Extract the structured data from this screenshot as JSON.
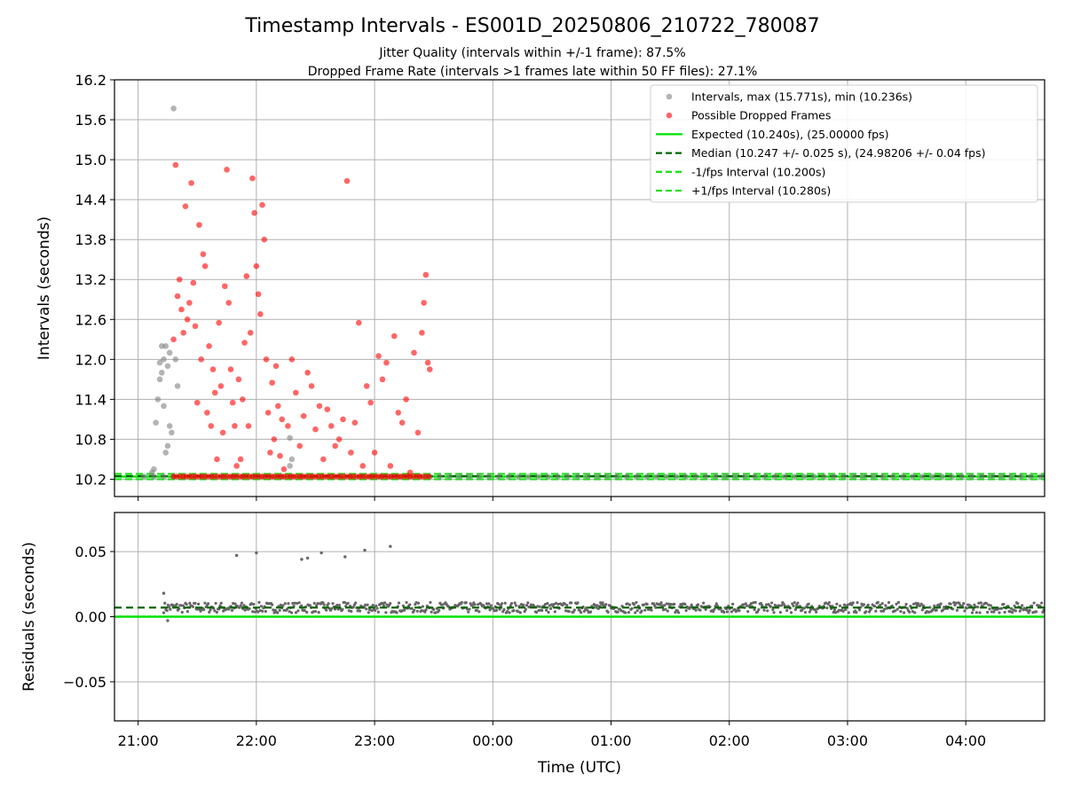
{
  "figure": {
    "title": "Timestamp Intervals - ES001D_20250806_210722_780087",
    "subtitle_1": "Jitter Quality (intervals within +/-1 frame): 87.5%",
    "subtitle_2": "Dropped Frame Rate (intervals >1 frames late within 50 FF files): 27.1%"
  },
  "colors": {
    "intervals": "#808080",
    "dropped": "#ff0000",
    "expected": "#00e000",
    "median": "#006400",
    "fps_band": "#20e020",
    "grid": "#b0b0b0",
    "residuals": "#666666"
  },
  "chart_data": [
    {
      "type": "scatter",
      "name": "intervals",
      "xlabel": "",
      "ylabel": "Intervals (seconds)",
      "xlim": [
        "20:48",
        "04:40"
      ],
      "ylim": [
        9.94,
        16.2
      ],
      "yticks": [
        "10.2",
        "10.8",
        "11.4",
        "12.0",
        "12.6",
        "13.2",
        "13.8",
        "14.4",
        "15.0",
        "15.6",
        "16.2"
      ],
      "grid": true,
      "legend_position": "top-right",
      "series": [
        {
          "name": "Intervals, max (15.771s), min (10.236s)",
          "style": "points",
          "points": [
            [
              "21:07",
              10.3
            ],
            [
              "21:08",
              10.35
            ],
            [
              "21:09",
              11.05
            ],
            [
              "21:10",
              11.4
            ],
            [
              "21:11",
              11.7
            ],
            [
              "21:11",
              11.95
            ],
            [
              "21:12",
              12.2
            ],
            [
              "21:12",
              11.8
            ],
            [
              "21:13",
              12.0
            ],
            [
              "21:13",
              11.3
            ],
            [
              "21:14",
              12.2
            ],
            [
              "21:14",
              10.6
            ],
            [
              "21:15",
              10.7
            ],
            [
              "21:15",
              11.9
            ],
            [
              "21:16",
              11.0
            ],
            [
              "21:16",
              12.1
            ],
            [
              "21:17",
              10.9
            ],
            [
              "21:18",
              15.77
            ],
            [
              "21:19",
              12.0
            ],
            [
              "21:20",
              11.6
            ],
            [
              "22:17",
              10.82
            ],
            [
              "22:17",
              10.4
            ],
            [
              "22:18",
              10.5
            ]
          ]
        },
        {
          "name": "Possible Dropped Frames",
          "style": "points",
          "points": [
            [
              "21:18",
              12.3
            ],
            [
              "21:19",
              14.92
            ],
            [
              "21:20",
              12.95
            ],
            [
              "21:21",
              13.2
            ],
            [
              "21:22",
              12.75
            ],
            [
              "21:23",
              12.4
            ],
            [
              "21:24",
              14.3
            ],
            [
              "21:25",
              12.6
            ],
            [
              "21:26",
              12.85
            ],
            [
              "21:27",
              14.65
            ],
            [
              "21:28",
              13.15
            ],
            [
              "21:29",
              12.5
            ],
            [
              "21:30",
              11.35
            ],
            [
              "21:31",
              14.02
            ],
            [
              "21:32",
              12.0
            ],
            [
              "21:33",
              13.58
            ],
            [
              "21:34",
              13.4
            ],
            [
              "21:35",
              11.2
            ],
            [
              "21:36",
              12.2
            ],
            [
              "21:37",
              11.0
            ],
            [
              "21:38",
              11.85
            ],
            [
              "21:39",
              11.5
            ],
            [
              "21:40",
              10.5
            ],
            [
              "21:41",
              12.55
            ],
            [
              "21:42",
              11.6
            ],
            [
              "21:43",
              10.9
            ],
            [
              "21:44",
              13.1
            ],
            [
              "21:45",
              14.85
            ],
            [
              "21:46",
              12.85
            ],
            [
              "21:47",
              11.85
            ],
            [
              "21:48",
              11.35
            ],
            [
              "21:49",
              11.0
            ],
            [
              "21:50",
              10.4
            ],
            [
              "21:51",
              11.7
            ],
            [
              "21:52",
              10.5
            ],
            [
              "21:53",
              11.4
            ],
            [
              "21:54",
              12.25
            ],
            [
              "21:55",
              13.25
            ],
            [
              "21:56",
              11.0
            ],
            [
              "21:57",
              12.4
            ],
            [
              "21:58",
              14.72
            ],
            [
              "21:59",
              14.2
            ],
            [
              "22:00",
              13.4
            ],
            [
              "22:01",
              12.98
            ],
            [
              "22:02",
              12.68
            ],
            [
              "22:03",
              14.32
            ],
            [
              "22:04",
              13.8
            ],
            [
              "22:05",
              12.0
            ],
            [
              "22:06",
              11.2
            ],
            [
              "22:07",
              10.6
            ],
            [
              "22:08",
              11.65
            ],
            [
              "22:09",
              10.8
            ],
            [
              "22:10",
              11.9
            ],
            [
              "22:11",
              11.3
            ],
            [
              "22:12",
              10.55
            ],
            [
              "22:13",
              11.1
            ],
            [
              "22:14",
              10.35
            ],
            [
              "22:16",
              11.0
            ],
            [
              "22:18",
              12.0
            ],
            [
              "22:20",
              11.5
            ],
            [
              "22:22",
              10.7
            ],
            [
              "22:24",
              11.15
            ],
            [
              "22:26",
              11.8
            ],
            [
              "22:28",
              11.6
            ],
            [
              "22:30",
              10.95
            ],
            [
              "22:32",
              11.3
            ],
            [
              "22:34",
              10.5
            ],
            [
              "22:36",
              11.25
            ],
            [
              "22:38",
              11.0
            ],
            [
              "22:40",
              10.7
            ],
            [
              "22:42",
              10.8
            ],
            [
              "22:44",
              11.1
            ],
            [
              "22:46",
              14.68
            ],
            [
              "22:48",
              10.6
            ],
            [
              "22:50",
              11.05
            ],
            [
              "22:52",
              12.55
            ],
            [
              "22:54",
              10.4
            ],
            [
              "22:56",
              11.6
            ],
            [
              "22:58",
              11.35
            ],
            [
              "23:00",
              10.6
            ],
            [
              "23:02",
              12.05
            ],
            [
              "23:04",
              11.7
            ],
            [
              "23:06",
              11.95
            ],
            [
              "23:08",
              10.4
            ],
            [
              "23:10",
              12.35
            ],
            [
              "23:12",
              11.2
            ],
            [
              "23:14",
              11.05
            ],
            [
              "23:16",
              11.4
            ],
            [
              "23:18",
              10.3
            ],
            [
              "23:20",
              12.1
            ],
            [
              "23:22",
              10.9
            ],
            [
              "23:24",
              12.4
            ],
            [
              "23:25",
              12.85
            ],
            [
              "23:26",
              13.27
            ],
            [
              "23:27",
              11.95
            ],
            [
              "23:28",
              11.85
            ]
          ]
        },
        {
          "name": "Expected (10.240s), (25.00000 fps)",
          "style": "line",
          "value": 10.24
        },
        {
          "name": "Median (10.247 +/- 0.025 s), (24.98206 +/- 0.04 fps)",
          "style": "dashed-line",
          "value": 10.247
        },
        {
          "name": "-1/fps Interval (10.200s)",
          "style": "dashed-line",
          "value": 10.2
        },
        {
          "name": "+1/fps Interval (10.280s)",
          "style": "dashed-line",
          "value": 10.28
        }
      ],
      "baseline_points": {
        "description_value": 10.24,
        "start": "21:03",
        "end": "04:40",
        "dropped_end": "23:28"
      }
    },
    {
      "type": "scatter",
      "name": "residuals",
      "xlabel": "Time (UTC)",
      "ylabel": "Residuals (seconds)",
      "xlim": [
        "20:48",
        "04:40"
      ],
      "ylim": [
        -0.08,
        0.08
      ],
      "yticks": [
        "0.05",
        "0.00",
        "−0.05"
      ],
      "ytick_values": [
        0.05,
        0.0,
        -0.05
      ],
      "xticks": [
        "21:00",
        "22:00",
        "23:00",
        "00:00",
        "01:00",
        "02:00",
        "03:00",
        "04:00"
      ],
      "grid": true,
      "expected_residual": 0.0,
      "median_residual": 0.007,
      "outliers": [
        [
          "21:13",
          0.018
        ],
        [
          "21:15",
          -0.003
        ],
        [
          "21:50",
          0.047
        ],
        [
          "22:00",
          0.049
        ],
        [
          "22:23",
          0.044
        ],
        [
          "22:26",
          0.045
        ],
        [
          "22:33",
          0.049
        ],
        [
          "22:45",
          0.046
        ],
        [
          "22:55",
          0.051
        ],
        [
          "23:08",
          0.054
        ]
      ],
      "band": {
        "start": "21:13",
        "end": "04:40",
        "center": 0.007,
        "spread": 0.004
      }
    }
  ]
}
